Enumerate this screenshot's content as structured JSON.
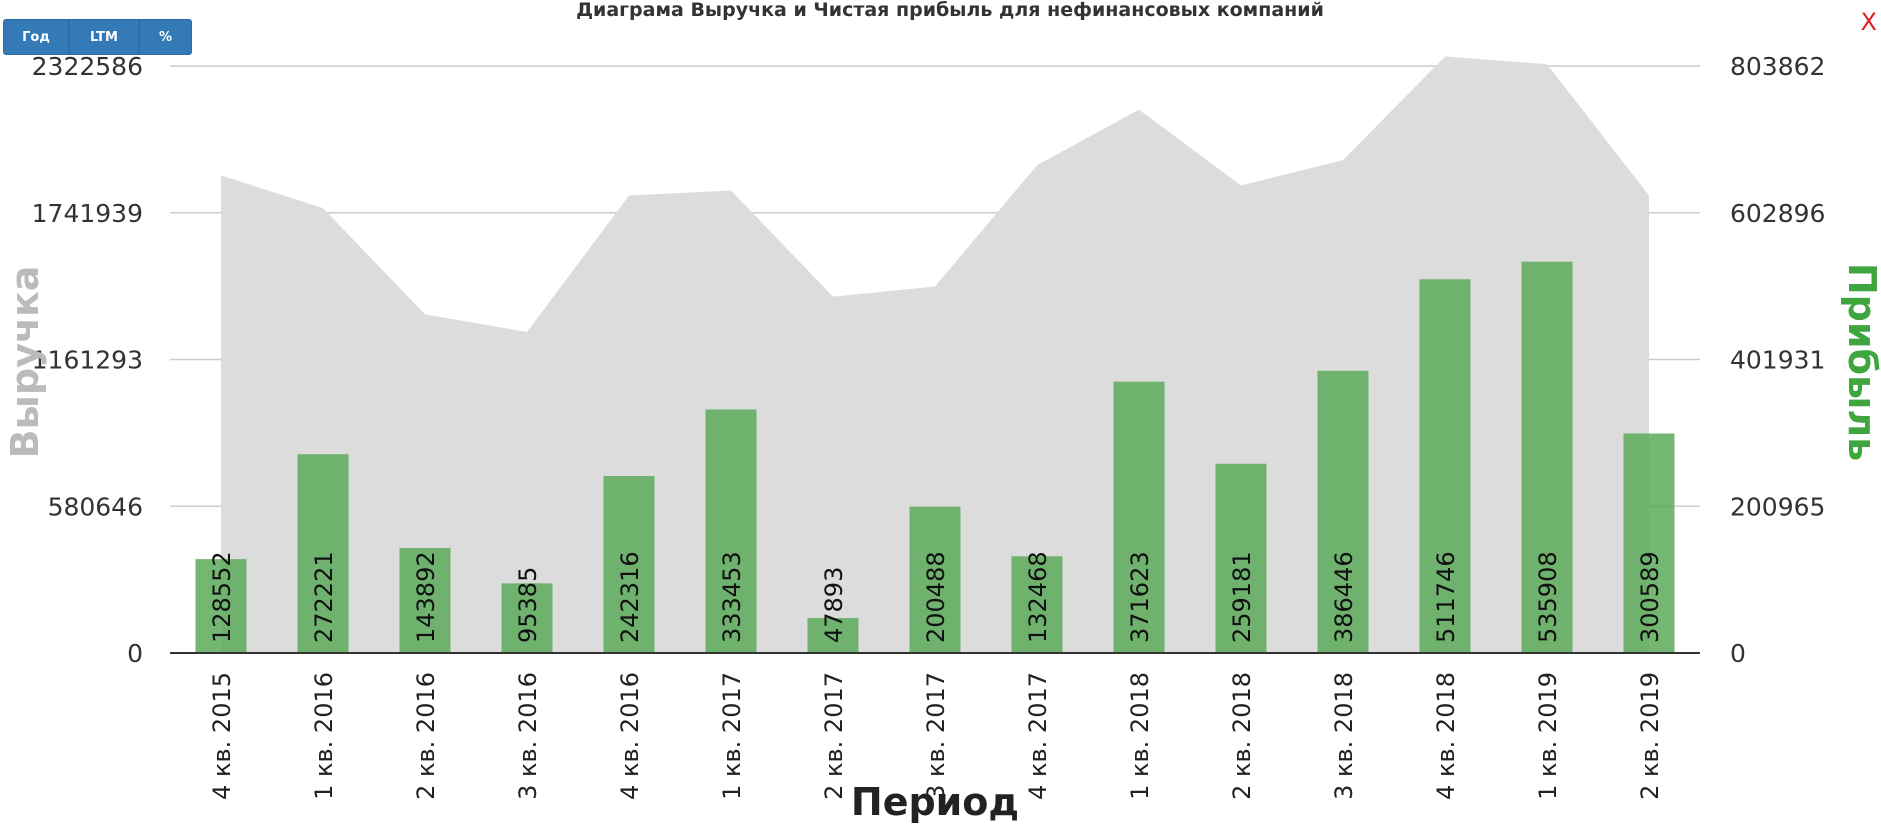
{
  "toolbar": {
    "year_label": "Год",
    "ltm_label": "LTM",
    "percent_label": "%"
  },
  "close_label": "X",
  "colors": {
    "area": "#dcdcdc",
    "bars": "#5aaa5a",
    "left_axis_title": "#bbbbbb",
    "right_axis_title": "#3fa63f",
    "button": "#337ab7",
    "close": "#e02020"
  },
  "chart_data": {
    "type": "bar",
    "title": "Диаграма Выручка и Чистая прибыль для нефинансовых компаний",
    "xlabel": "Период",
    "ylabel_left": "Выручка",
    "ylabel_right": "Прибыль",
    "categories": [
      "4 кв. 2015",
      "1 кв. 2016",
      "2 кв. 2016",
      "3 кв. 2016",
      "4 кв. 2016",
      "1 кв. 2017",
      "2 кв. 2017",
      "3 кв. 2017",
      "4 кв. 2017",
      "1 кв. 2018",
      "2 кв. 2018",
      "3 кв. 2018",
      "4 кв. 2018",
      "1 кв. 2019",
      "2 кв. 2019"
    ],
    "left_ticks": [
      "0",
      "580646",
      "1161293",
      "1741939",
      "2322586"
    ],
    "right_ticks": [
      "0",
      "200965",
      "401931",
      "602896",
      "803862"
    ],
    "left_ylim": [
      0,
      2322586
    ],
    "right_ylim": [
      0,
      803862
    ],
    "grid": true,
    "series": [
      {
        "type": "area",
        "axis": "left",
        "values": [
          1890000,
          1760000,
          1340000,
          1270000,
          1810000,
          1830000,
          1410000,
          1450000,
          1930000,
          2150000,
          1850000,
          1950000,
          2360000,
          2330000,
          1810000
        ]
      },
      {
        "type": "bar",
        "axis": "right",
        "values": [
          128552,
          272221,
          143892,
          95385,
          242316,
          333453,
          47893,
          200488,
          132468,
          371623,
          259181,
          386446,
          511746,
          535908,
          300589
        ]
      }
    ]
  }
}
